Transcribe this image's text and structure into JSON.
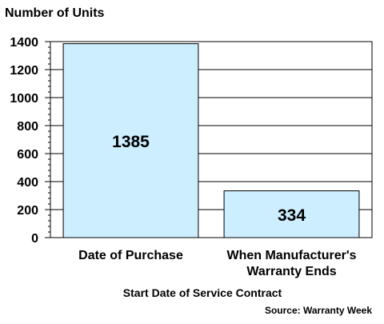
{
  "chart_data": {
    "type": "bar",
    "ylabel": "Number of Units",
    "xlabel": "Start Date of Service Contract",
    "source": "Source: Warranty Week",
    "categories": [
      [
        "Date of Purchase"
      ],
      [
        "When Manufacturer's",
        "Warranty Ends"
      ]
    ],
    "values": [
      1385,
      334
    ],
    "data_labels": [
      "1385",
      "334"
    ],
    "ylim": [
      0,
      1400
    ],
    "yticks": [
      0,
      200,
      400,
      600,
      800,
      1000,
      1200,
      1400
    ],
    "minor_tick_step": 40,
    "grid": true,
    "legend": "none",
    "colors": {
      "bar_fill": "#cdeeff",
      "bar_stroke": "#000000",
      "grid": "#000000",
      "frame": "#000000"
    }
  }
}
